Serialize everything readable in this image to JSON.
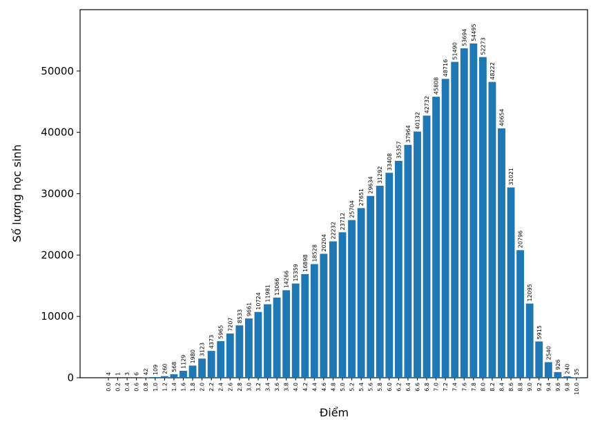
{
  "chart_data": {
    "type": "bar",
    "x_label": "Điểm",
    "y_label": "Số lượng học sinh",
    "categories": [
      "0.0",
      "0.2",
      "0.4",
      "0.6",
      "0.8",
      "1.0",
      "1.2",
      "1.4",
      "1.6",
      "1.8",
      "2.0",
      "2.2",
      "2.4",
      "2.6",
      "2.8",
      "3.0",
      "3.2",
      "3.4",
      "3.6",
      "3.8",
      "4.0",
      "4.2",
      "4.4",
      "4.6",
      "4.8",
      "5.0",
      "5.2",
      "5.4",
      "5.6",
      "5.8",
      "6.0",
      "6.2",
      "6.4",
      "6.6",
      "6.8",
      "7.0",
      "7.2",
      "7.4",
      "7.6",
      "7.8",
      "8.0",
      "8.2",
      "8.4",
      "8.6",
      "8.8",
      "9.0",
      "9.2",
      "9.4",
      "9.6",
      "9.8",
      "10.0"
    ],
    "values": [
      4,
      1,
      3,
      6,
      42,
      109,
      260,
      568,
      1129,
      1980,
      3123,
      4373,
      5965,
      7207,
      8533,
      9661,
      10724,
      11981,
      13066,
      14266,
      15359,
      16898,
      18528,
      20204,
      22232,
      23712,
      25704,
      27651,
      29634,
      31292,
      33408,
      35357,
      37964,
      40132,
      42732,
      45808,
      48716,
      51490,
      53694,
      54495,
      52273,
      48222,
      40654,
      31021,
      20796,
      12095,
      5915,
      2540,
      926,
      240,
      35
    ],
    "color": "#1f77b4",
    "ylim": [
      0,
      60000
    ],
    "yticks": [
      0,
      10000,
      20000,
      30000,
      40000,
      50000
    ],
    "grid": false
  }
}
